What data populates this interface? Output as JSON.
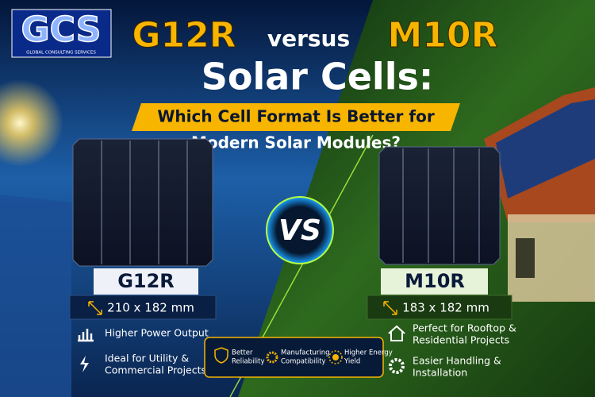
{
  "logo": {
    "text": "GCS",
    "tagline": "GLOBAL CONSULTING SERVICES"
  },
  "header": {
    "title_left": "G12R",
    "title_mid": "versus",
    "title_right": "M10R",
    "title_line2": "Solar Cells:",
    "subtitle_lines": [
      "Which Cell Format Is Better for",
      "Modern Solar Modules?"
    ]
  },
  "vs": "VS",
  "left": {
    "name": "G12R",
    "size": "210 x 182 mm",
    "features": [
      {
        "lines": [
          "Higher Power Output"
        ]
      },
      {
        "lines": [
          "Ideal for Utility &",
          "Commercial Projects"
        ]
      }
    ]
  },
  "right": {
    "name": "M10R",
    "size": "183 x 182 mm",
    "features": [
      {
        "lines": [
          "Perfect for Rooftop &",
          "Residential Projects"
        ]
      },
      {
        "lines": [
          "Easier Handling &",
          "Installation"
        ]
      }
    ]
  },
  "center_features": [
    {
      "lines": [
        "Better",
        "Reliability"
      ]
    },
    {
      "lines": [
        "Manufacturing",
        "Compatibility"
      ]
    },
    {
      "lines": [
        "Higher Energy",
        "Yield"
      ]
    }
  ]
}
